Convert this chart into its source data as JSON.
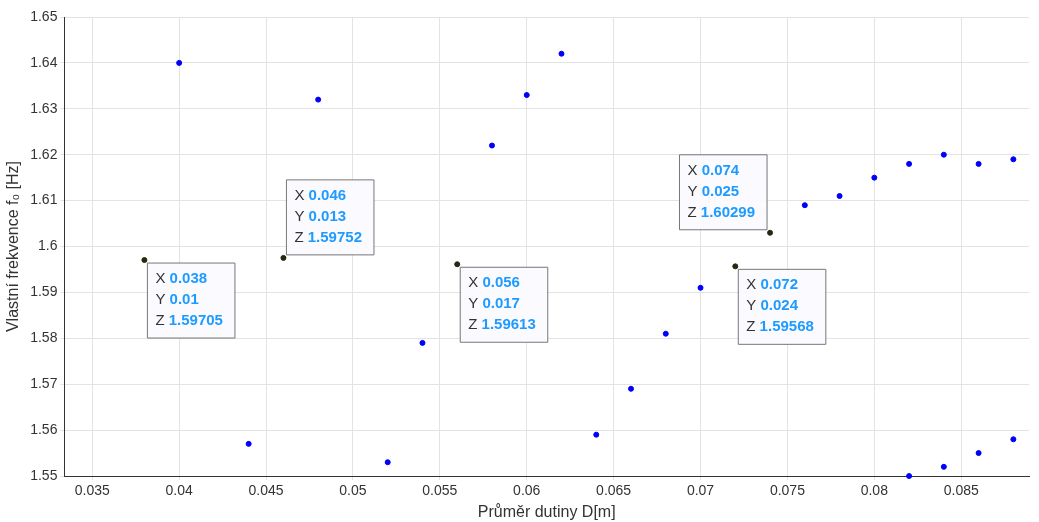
{
  "chart_data": {
    "type": "scatter",
    "xlabel": "Průměr dutiny D[m]",
    "ylabel": "Vlastní frekvence f₀ [Hz]",
    "x": [
      0.038,
      0.04,
      0.044,
      0.046,
      0.048,
      0.052,
      0.054,
      0.056,
      0.058,
      0.06,
      0.062,
      0.064,
      0.066,
      0.068,
      0.07,
      0.072,
      0.074,
      0.076,
      0.078,
      0.08,
      0.082,
      0.082,
      0.084,
      0.084,
      0.086,
      0.086,
      0.088,
      0.088
    ],
    "values": [
      1.59705,
      1.64,
      1.557,
      1.59752,
      1.632,
      1.553,
      1.579,
      1.59613,
      1.622,
      1.633,
      1.642,
      1.559,
      1.569,
      1.581,
      1.591,
      1.59568,
      1.60299,
      1.609,
      1.611,
      1.615,
      1.618,
      1.55,
      1.62,
      1.552,
      1.618,
      1.555,
      1.619,
      1.558
    ],
    "colors": [
      "#222a10",
      "#0000ff",
      "#0000ff",
      "#222a10",
      "#0000ff",
      "#0000ff",
      "#0000ff",
      "#222a10",
      "#0000ff",
      "#0000ff",
      "#0000ff",
      "#0000ff",
      "#0000ff",
      "#0000ff",
      "#0000ff",
      "#222a10",
      "#222a10",
      "#0000ff",
      "#0000ff",
      "#0000ff",
      "#0000ff",
      "#0000ff",
      "#0000ff",
      "#0000ff",
      "#0000ff",
      "#0000ff",
      "#0000ff",
      "#0000ff"
    ],
    "xlim": [
      0.0334,
      0.0889
    ],
    "xticks": [
      0.035,
      0.04,
      0.045,
      0.05,
      0.055,
      0.06,
      0.065,
      0.07,
      0.075,
      0.08,
      0.085
    ],
    "ylim": [
      1.55,
      1.65
    ],
    "yticks": [
      1.55,
      1.56,
      1.57,
      1.58,
      1.59,
      1.6,
      1.61,
      1.62,
      1.63,
      1.64,
      1.65
    ],
    "grid": true,
    "legend": false,
    "marker": "circle",
    "annotations": [
      {
        "text": "X 0.038\nY 0.01\nZ 1.59705",
        "x": 0.038,
        "y": 1.59705
      },
      {
        "text": "X 0.046\nY 0.013\nZ 1.59752",
        "x": 0.046,
        "y": 1.59752
      },
      {
        "text": "X 0.056\nY 0.017\nZ 1.59613",
        "x": 0.056,
        "y": 1.59613
      },
      {
        "text": "X 0.072\nY 0.024\nZ 1.59568",
        "x": 0.072,
        "y": 1.59568
      },
      {
        "text": "X 0.074\nY 0.025\nZ 1.60299",
        "x": 0.074,
        "y": 1.60299
      }
    ]
  }
}
